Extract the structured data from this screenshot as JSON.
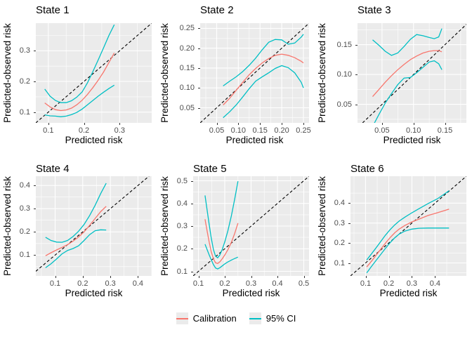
{
  "axis_labels": {
    "x": "Predicted risk",
    "y": "Predicted-observed risk"
  },
  "legend": {
    "position": "bottom",
    "items": [
      {
        "label": "Calibration",
        "color": "#F8766D"
      },
      {
        "label": "95% CI",
        "color": "#00BFC4"
      }
    ]
  },
  "style": {
    "panel_bg": "#EBEBEB",
    "grid": "#FFFFFF",
    "tick_color": "#333333",
    "tick_label_color": "#4D4D4D",
    "calibration_color": "#F8766D",
    "ci_color": "#00BFC4",
    "reference_color": "#000000"
  },
  "chart_data": [
    {
      "type": "line",
      "title": "State 1",
      "xlabel": "Predicted risk",
      "ylabel": "Predicted-observed risk",
      "xlim": [
        0.065,
        0.39
      ],
      "ylim": [
        0.065,
        0.39
      ],
      "xticks": [
        "0.1",
        "0.2",
        "0.3"
      ],
      "yticks": [
        "0.1",
        "0.2",
        "0.3"
      ],
      "grid": true,
      "series": [
        {
          "name": "Ideal",
          "style": "dashed",
          "color": "#000000",
          "x": [
            0.065,
            0.39
          ],
          "y": [
            0.065,
            0.39
          ]
        },
        {
          "name": "95% CI upper",
          "style": "solid",
          "color": "#00BFC4",
          "x": [
            0.09,
            0.105,
            0.12,
            0.135,
            0.15,
            0.165,
            0.18,
            0.195,
            0.21,
            0.225,
            0.24,
            0.255,
            0.27,
            0.285
          ],
          "y": [
            0.175,
            0.152,
            0.138,
            0.131,
            0.131,
            0.137,
            0.149,
            0.166,
            0.196,
            0.232,
            0.27,
            0.31,
            0.35,
            0.385
          ]
        },
        {
          "name": "95% CI lower",
          "style": "solid",
          "color": "#00BFC4",
          "x": [
            0.09,
            0.105,
            0.12,
            0.135,
            0.15,
            0.165,
            0.18,
            0.195,
            0.21,
            0.225,
            0.24,
            0.255,
            0.27,
            0.285
          ],
          "y": [
            0.091,
            0.088,
            0.087,
            0.085,
            0.087,
            0.092,
            0.099,
            0.11,
            0.124,
            0.138,
            0.152,
            0.165,
            0.177,
            0.188
          ]
        },
        {
          "name": "Calibration",
          "style": "solid",
          "color": "#F8766D",
          "x": [
            0.09,
            0.105,
            0.12,
            0.135,
            0.15,
            0.165,
            0.18,
            0.195,
            0.21,
            0.225,
            0.24,
            0.255,
            0.27,
            0.285
          ],
          "y": [
            0.13,
            0.117,
            0.108,
            0.105,
            0.107,
            0.113,
            0.124,
            0.139,
            0.158,
            0.18,
            0.204,
            0.231,
            0.262,
            0.293
          ]
        }
      ]
    },
    {
      "type": "line",
      "title": "State 2",
      "xlabel": "Predicted risk",
      "ylabel": "Predicted-observed risk",
      "xlim": [
        0.012,
        0.263
      ],
      "ylim": [
        0.012,
        0.263
      ],
      "xticks": [
        "0.05",
        "0.10",
        "0.15",
        "0.20",
        "0.25"
      ],
      "yticks": [
        "0.05",
        "0.10",
        "0.15",
        "0.20",
        "0.25"
      ],
      "grid": true,
      "series": [
        {
          "name": "Ideal",
          "style": "dashed",
          "color": "#000000",
          "x": [
            0.012,
            0.263
          ],
          "y": [
            0.012,
            0.263
          ]
        },
        {
          "name": "95% CI upper",
          "style": "solid",
          "color": "#00BFC4",
          "x": [
            0.065,
            0.08,
            0.095,
            0.11,
            0.125,
            0.14,
            0.155,
            0.17,
            0.185,
            0.2,
            0.215,
            0.23,
            0.245,
            0.25
          ],
          "y": [
            0.105,
            0.117,
            0.128,
            0.141,
            0.157,
            0.175,
            0.196,
            0.215,
            0.222,
            0.221,
            0.21,
            0.213,
            0.228,
            0.235
          ]
        },
        {
          "name": "95% CI lower",
          "style": "solid",
          "color": "#00BFC4",
          "x": [
            0.065,
            0.08,
            0.095,
            0.11,
            0.125,
            0.14,
            0.155,
            0.17,
            0.185,
            0.2,
            0.215,
            0.23,
            0.245,
            0.25
          ],
          "y": [
            0.025,
            0.04,
            0.057,
            0.077,
            0.098,
            0.117,
            0.128,
            0.138,
            0.149,
            0.156,
            0.151,
            0.138,
            0.114,
            0.1
          ]
        },
        {
          "name": "Calibration",
          "style": "solid",
          "color": "#F8766D",
          "x": [
            0.065,
            0.08,
            0.095,
            0.11,
            0.125,
            0.14,
            0.155,
            0.17,
            0.185,
            0.2,
            0.215,
            0.23,
            0.245,
            0.25
          ],
          "y": [
            0.057,
            0.074,
            0.094,
            0.114,
            0.133,
            0.149,
            0.163,
            0.174,
            0.182,
            0.185,
            0.182,
            0.176,
            0.167,
            0.163
          ]
        }
      ]
    },
    {
      "type": "line",
      "title": "State 3",
      "xlabel": "Predicted risk",
      "ylabel": "Predicted-observed risk",
      "xlim": [
        0.011,
        0.184
      ],
      "ylim": [
        0.019,
        0.186
      ],
      "xticks": [
        "0.05",
        "0.10",
        "0.15"
      ],
      "yticks": [
        "0.05",
        "0.10",
        "0.15"
      ],
      "grid": true,
      "series": [
        {
          "name": "Ideal",
          "style": "dashed",
          "color": "#000000",
          "x": [
            0.019,
            0.184
          ],
          "y": [
            0.019,
            0.184
          ]
        },
        {
          "name": "95% CI upper",
          "style": "solid",
          "color": "#00BFC4",
          "x": [
            0.035,
            0.045,
            0.055,
            0.065,
            0.075,
            0.085,
            0.095,
            0.105,
            0.115,
            0.125,
            0.133,
            0.14,
            0.145
          ],
          "y": [
            0.158,
            0.149,
            0.139,
            0.132,
            0.136,
            0.147,
            0.159,
            0.167,
            0.165,
            0.162,
            0.16,
            0.163,
            0.177
          ]
        },
        {
          "name": "95% CI lower",
          "style": "solid",
          "color": "#00BFC4",
          "x": [
            0.035,
            0.045,
            0.055,
            0.065,
            0.075,
            0.085,
            0.095,
            0.105,
            0.115,
            0.125,
            0.133,
            0.14,
            0.145
          ],
          "y": [
            0.013,
            0.033,
            0.052,
            0.068,
            0.083,
            0.094,
            0.095,
            0.103,
            0.112,
            0.121,
            0.123,
            0.118,
            0.108
          ]
        },
        {
          "name": "Calibration",
          "style": "solid",
          "color": "#F8766D",
          "x": [
            0.035,
            0.045,
            0.055,
            0.065,
            0.075,
            0.085,
            0.095,
            0.105,
            0.115,
            0.125,
            0.133,
            0.14,
            0.145
          ],
          "y": [
            0.063,
            0.075,
            0.087,
            0.098,
            0.108,
            0.117,
            0.125,
            0.131,
            0.136,
            0.139,
            0.14,
            0.14,
            0.138
          ]
        }
      ]
    },
    {
      "type": "line",
      "title": "State 4",
      "xlabel": "Predicted risk",
      "ylabel": "Predicted-observed risk",
      "xlim": [
        0.03,
        0.45
      ],
      "ylim": [
        0.01,
        0.44
      ],
      "xticks": [
        "0.1",
        "0.2",
        "0.3",
        "0.4"
      ],
      "yticks": [
        "0.1",
        "0.2",
        "0.3",
        "0.4"
      ],
      "grid": true,
      "series": [
        {
          "name": "Ideal",
          "style": "dashed",
          "color": "#000000",
          "x": [
            0.03,
            0.44
          ],
          "y": [
            0.03,
            0.44
          ]
        },
        {
          "name": "95% CI upper",
          "style": "solid",
          "color": "#00BFC4",
          "x": [
            0.065,
            0.085,
            0.105,
            0.125,
            0.145,
            0.165,
            0.185,
            0.205,
            0.225,
            0.245,
            0.265,
            0.285
          ],
          "y": [
            0.177,
            0.163,
            0.156,
            0.155,
            0.163,
            0.18,
            0.203,
            0.232,
            0.27,
            0.315,
            0.365,
            0.41
          ]
        },
        {
          "name": "95% CI lower",
          "style": "solid",
          "color": "#00BFC4",
          "x": [
            0.065,
            0.085,
            0.105,
            0.125,
            0.145,
            0.165,
            0.185,
            0.205,
            0.225,
            0.245,
            0.265,
            0.285
          ],
          "y": [
            0.045,
            0.062,
            0.083,
            0.105,
            0.12,
            0.128,
            0.14,
            0.163,
            0.188,
            0.205,
            0.209,
            0.208
          ]
        },
        {
          "name": "Calibration",
          "style": "solid",
          "color": "#F8766D",
          "x": [
            0.065,
            0.085,
            0.105,
            0.125,
            0.145,
            0.165,
            0.185,
            0.205,
            0.225,
            0.245,
            0.265,
            0.285
          ],
          "y": [
            0.097,
            0.11,
            0.122,
            0.133,
            0.145,
            0.16,
            0.178,
            0.2,
            0.228,
            0.258,
            0.287,
            0.31
          ]
        }
      ]
    },
    {
      "type": "line",
      "title": "State 5",
      "xlabel": "Predicted risk",
      "ylabel": "Predicted-observed risk",
      "xlim": [
        0.08,
        0.52
      ],
      "ylim": [
        0.08,
        0.52
      ],
      "xticks": [
        "0.1",
        "0.2",
        "0.3",
        "0.4",
        "0.5"
      ],
      "yticks": [
        "0.1",
        "0.2",
        "0.3",
        "0.4",
        "0.5"
      ],
      "grid": true,
      "series": [
        {
          "name": "Ideal",
          "style": "dashed",
          "color": "#000000",
          "x": [
            0.08,
            0.52
          ],
          "y": [
            0.08,
            0.52
          ]
        },
        {
          "name": "95% CI upper",
          "style": "solid",
          "color": "#00BFC4",
          "x": [
            0.125,
            0.133,
            0.141,
            0.149,
            0.157,
            0.165,
            0.173,
            0.181,
            0.19,
            0.2,
            0.212,
            0.225,
            0.238,
            0.25
          ],
          "y": [
            0.435,
            0.37,
            0.305,
            0.245,
            0.196,
            0.167,
            0.16,
            0.172,
            0.196,
            0.23,
            0.28,
            0.345,
            0.42,
            0.498
          ]
        },
        {
          "name": "95% CI lower",
          "style": "solid",
          "color": "#00BFC4",
          "x": [
            0.125,
            0.133,
            0.141,
            0.149,
            0.157,
            0.165,
            0.173,
            0.181,
            0.19,
            0.2,
            0.212,
            0.225,
            0.238,
            0.25
          ],
          "y": [
            0.22,
            0.196,
            0.172,
            0.15,
            0.13,
            0.115,
            0.111,
            0.116,
            0.124,
            0.133,
            0.142,
            0.15,
            0.157,
            0.163
          ]
        },
        {
          "name": "Calibration",
          "style": "solid",
          "color": "#F8766D",
          "x": [
            0.125,
            0.133,
            0.141,
            0.149,
            0.157,
            0.165,
            0.173,
            0.181,
            0.19,
            0.2,
            0.212,
            0.225,
            0.238,
            0.25
          ],
          "y": [
            0.33,
            0.278,
            0.228,
            0.185,
            0.155,
            0.138,
            0.135,
            0.142,
            0.155,
            0.172,
            0.196,
            0.228,
            0.268,
            0.313
          ]
        }
      ]
    },
    {
      "type": "line",
      "title": "State 6",
      "xlabel": "Predicted risk",
      "ylabel": "Predicted-observed risk",
      "xlim": [
        0.035,
        0.535
      ],
      "ylim": [
        0.035,
        0.535
      ],
      "xticks": [
        "0.1",
        "0.2",
        "0.3",
        "0.4"
      ],
      "yticks": [
        "0.1",
        "0.2",
        "0.3",
        "0.4"
      ],
      "grid": true,
      "series": [
        {
          "name": "Ideal",
          "style": "dashed",
          "color": "#000000",
          "x": [
            0.035,
            0.535
          ],
          "y": [
            0.035,
            0.535
          ]
        },
        {
          "name": "95% CI upper",
          "style": "solid",
          "color": "#00BFC4",
          "x": [
            0.105,
            0.125,
            0.145,
            0.165,
            0.185,
            0.205,
            0.225,
            0.245,
            0.27,
            0.3,
            0.33,
            0.37,
            0.41,
            0.46
          ],
          "y": [
            0.115,
            0.145,
            0.175,
            0.207,
            0.238,
            0.266,
            0.29,
            0.31,
            0.33,
            0.352,
            0.372,
            0.398,
            0.422,
            0.462
          ]
        },
        {
          "name": "95% CI lower",
          "style": "solid",
          "color": "#00BFC4",
          "x": [
            0.105,
            0.125,
            0.145,
            0.165,
            0.185,
            0.205,
            0.225,
            0.245,
            0.27,
            0.3,
            0.33,
            0.37,
            0.41,
            0.46
          ],
          "y": [
            0.05,
            0.082,
            0.112,
            0.142,
            0.172,
            0.2,
            0.225,
            0.245,
            0.26,
            0.27,
            0.274,
            0.275,
            0.275,
            0.275
          ]
        },
        {
          "name": "Calibration",
          "style": "solid",
          "color": "#F8766D",
          "x": [
            0.105,
            0.125,
            0.145,
            0.165,
            0.185,
            0.205,
            0.225,
            0.245,
            0.27,
            0.3,
            0.33,
            0.37,
            0.41,
            0.46
          ],
          "y": [
            0.08,
            0.108,
            0.138,
            0.168,
            0.198,
            0.226,
            0.25,
            0.27,
            0.288,
            0.306,
            0.32,
            0.338,
            0.352,
            0.37
          ]
        }
      ]
    }
  ]
}
